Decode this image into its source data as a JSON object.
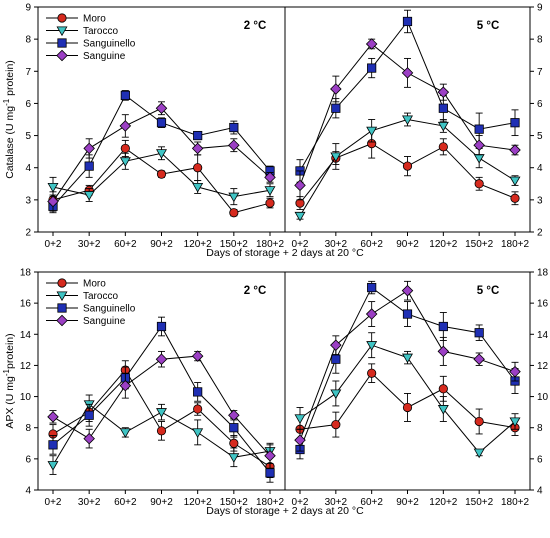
{
  "chart_data": [
    {
      "type": "line",
      "xlabel": "Days of storage + 2 days at 20 °C",
      "ylabel": "Catalase (U mg-1 protein)",
      "ylabel_parts": {
        "pre": "Catalase (U mg",
        "sup": "-1",
        "post": " protein)"
      },
      "categories": [
        "0+2",
        "30+2",
        "60+2",
        "90+2",
        "120+2",
        "150+2",
        "180+2"
      ],
      "ylim": [
        2,
        9
      ],
      "yticks": [
        2,
        3,
        4,
        5,
        6,
        7,
        8,
        9
      ],
      "legend": {
        "placement": "top-left"
      },
      "panels": [
        {
          "label": "2 °C",
          "ytick_side": "left",
          "series": [
            {
              "name": "Moro",
              "values": [
                3.0,
                3.3,
                4.6,
                3.8,
                4.0,
                2.6,
                2.9
              ],
              "errors": [
                0.15,
                0.15,
                0.25,
                0.1,
                0.4,
                0.1,
                0.15
              ]
            },
            {
              "name": "Tarocco",
              "values": [
                3.4,
                3.15,
                4.2,
                4.45,
                3.4,
                3.1,
                3.3
              ],
              "errors": [
                0.3,
                0.2,
                0.25,
                0.2,
                0.2,
                0.25,
                0.2
              ]
            },
            {
              "name": "Sanguinello",
              "values": [
                2.8,
                4.05,
                6.25,
                5.4,
                5.0,
                5.25,
                3.9
              ],
              "errors": [
                0.2,
                0.35,
                0.15,
                0.15,
                0.1,
                0.2,
                0.15
              ]
            },
            {
              "name": "Sanguine",
              "values": [
                2.95,
                4.6,
                5.3,
                5.85,
                4.6,
                4.7,
                3.7
              ],
              "errors": [
                0.3,
                0.3,
                0.35,
                0.2,
                0.2,
                0.2,
                0.15
              ]
            }
          ]
        },
        {
          "label": "5 °C",
          "ytick_side": "right",
          "series": [
            {
              "name": "Moro",
              "values": [
                2.9,
                4.3,
                4.75,
                4.05,
                4.65,
                3.5,
                3.05
              ],
              "errors": [
                0.2,
                0.2,
                0.45,
                0.3,
                0.25,
                0.2,
                0.2
              ]
            },
            {
              "name": "Tarocco",
              "values": [
                2.5,
                4.35,
                5.15,
                5.5,
                5.3,
                4.3,
                3.6
              ],
              "errors": [
                0.1,
                0.4,
                0.35,
                0.2,
                0.2,
                0.3,
                0.15
              ]
            },
            {
              "name": "Sanguinello",
              "values": [
                3.9,
                5.85,
                7.1,
                8.55,
                5.85,
                5.2,
                5.4
              ],
              "errors": [
                0.35,
                0.3,
                0.3,
                0.35,
                0.4,
                0.5,
                0.4
              ]
            },
            {
              "name": "Sanguine",
              "values": [
                3.45,
                6.45,
                7.85,
                6.95,
                6.35,
                4.7,
                4.55
              ],
              "errors": [
                0.45,
                0.4,
                0.15,
                0.45,
                0.25,
                0.3,
                0.15
              ]
            }
          ]
        }
      ]
    },
    {
      "type": "line",
      "xlabel": "Days of storage + 2 days at 20 °C",
      "ylabel": "APX (U mg-1protein)",
      "ylabel_parts": {
        "pre": "APX (U mg",
        "sup": "-1",
        "post": "protein)"
      },
      "categories": [
        "0+2",
        "30+2",
        "60+2",
        "90+2",
        "120+2",
        "150+2",
        "180+2"
      ],
      "ylim": [
        4,
        18
      ],
      "yticks": [
        4,
        6,
        8,
        10,
        12,
        14,
        16,
        18
      ],
      "legend": {
        "placement": "top-left"
      },
      "panels": [
        {
          "label": "2 °C",
          "ytick_side": "left",
          "series": [
            {
              "name": "Moro",
              "values": [
                7.6,
                9.0,
                11.7,
                7.8,
                9.2,
                7.0,
                5.5
              ],
              "errors": [
                0.6,
                0.6,
                0.6,
                0.6,
                0.4,
                0.5,
                0.7
              ]
            },
            {
              "name": "Tarocco",
              "values": [
                5.6,
                9.5,
                7.7,
                9.0,
                7.7,
                6.1,
                6.5
              ],
              "errors": [
                0.6,
                0.6,
                0.3,
                0.5,
                0.8,
                0.6,
                0.4
              ]
            },
            {
              "name": "Sanguinello",
              "values": [
                6.9,
                8.8,
                11.2,
                14.5,
                10.3,
                8.0,
                5.1
              ],
              "errors": [
                0.6,
                0.7,
                0.7,
                0.6,
                0.6,
                0.6,
                0.6
              ]
            },
            {
              "name": "Sanguine",
              "values": [
                8.7,
                7.3,
                10.7,
                12.4,
                12.6,
                8.8,
                6.2
              ],
              "errors": [
                0.4,
                0.6,
                0.8,
                0.5,
                0.3,
                0.3,
                0.8
              ]
            }
          ]
        },
        {
          "label": "5 °C",
          "ytick_side": "right",
          "series": [
            {
              "name": "Moro",
              "values": [
                7.9,
                8.2,
                11.5,
                9.3,
                10.5,
                8.4,
                8.0
              ],
              "errors": [
                0.8,
                0.8,
                0.6,
                0.9,
                0.8,
                0.8,
                0.5
              ]
            },
            {
              "name": "Tarocco",
              "values": [
                8.6,
                10.2,
                13.3,
                12.5,
                9.2,
                6.4,
                8.4
              ],
              "errors": [
                0.7,
                0.8,
                0.8,
                0.4,
                0.8,
                0.2,
                0.5
              ]
            },
            {
              "name": "Sanguinello",
              "values": [
                6.6,
                12.4,
                17.0,
                15.3,
                14.5,
                14.1,
                11.0
              ],
              "errors": [
                0.6,
                0.9,
                0.4,
                0.8,
                0.9,
                0.5,
                0.8
              ]
            },
            {
              "name": "Sanguine",
              "values": [
                7.2,
                13.3,
                15.3,
                16.8,
                12.9,
                12.4,
                11.6
              ],
              "errors": [
                0.7,
                0.6,
                0.8,
                0.6,
                0.9,
                0.4,
                0.6
              ]
            }
          ]
        }
      ]
    }
  ],
  "series_style": {
    "Moro": {
      "marker": "circle",
      "color": "#d62a1e"
    },
    "Tarocco": {
      "marker": "triangle-down",
      "color": "#40c4c4"
    },
    "Sanguinello": {
      "marker": "square",
      "color": "#1f2fb4"
    },
    "Sanguine": {
      "marker": "diamond",
      "color": "#9b3fc4"
    }
  }
}
